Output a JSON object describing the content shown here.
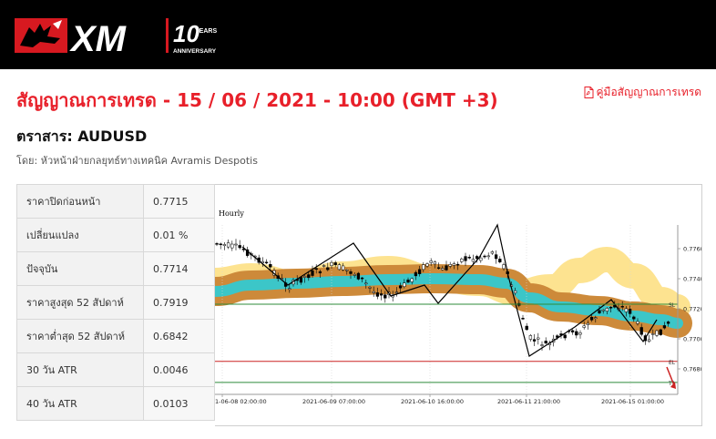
{
  "header": {
    "logo_text": "XM",
    "anniv_number": "10",
    "anniv_years": "YEARS",
    "anniv_label": "ANNIVERSARY"
  },
  "title": "สัญญาณการเทรด - 15 / 06 / 2021 - 10:00 (GMT +3)",
  "manual_link": "คู่มือสัญญาณการเทรด",
  "instrument": "ตราสาร: AUDUSD",
  "byline": "โดย: หัวหน้าฝ่ายกลยุทธ์ทางเทคนิค Avramis Despotis",
  "stats": [
    {
      "label": "ราคาปิดก่อนหน้า",
      "value": "0.7715"
    },
    {
      "label": "เปลี่ยนแปลง",
      "value": "0.01 %"
    },
    {
      "label": "ปัจจุบัน",
      "value": "0.7714"
    },
    {
      "label": "ราคาสูงสุด 52 สัปดาห์",
      "value": "0.7919"
    },
    {
      "label": "ราคาต่ำสุด 52 สัปดาห์",
      "value": "0.6842"
    },
    {
      "label": "30 วัน ATR",
      "value": "0.0046"
    },
    {
      "label": "40 วัน ATR",
      "value": "0.0103"
    }
  ],
  "chart": {
    "timeframe": "Hourly",
    "y_ticks": [
      "0.7760",
      "0.7740",
      "0.7720",
      "0.7700",
      "0.7680"
    ],
    "x_ticks": [
      "1-06-08 02:00:00",
      "2021-06-09 07:00:00",
      "2021-06-10 16:00:00",
      "2021-06-11 21:00:00",
      "2021-06-15 01:00:00"
    ],
    "levels": [
      {
        "label": "SL",
        "value": 0.7723,
        "color": "#2e8b3a"
      },
      {
        "label": "EL",
        "value": 0.7685,
        "color": "#cc2222"
      },
      {
        "label": "T1",
        "value": 0.7671,
        "color": "#2e8b3a"
      }
    ],
    "colors": {
      "outer_band": "#cd8a3a",
      "inner_band": "#3cc6c8",
      "yellow_band": "#fde28a"
    }
  }
}
